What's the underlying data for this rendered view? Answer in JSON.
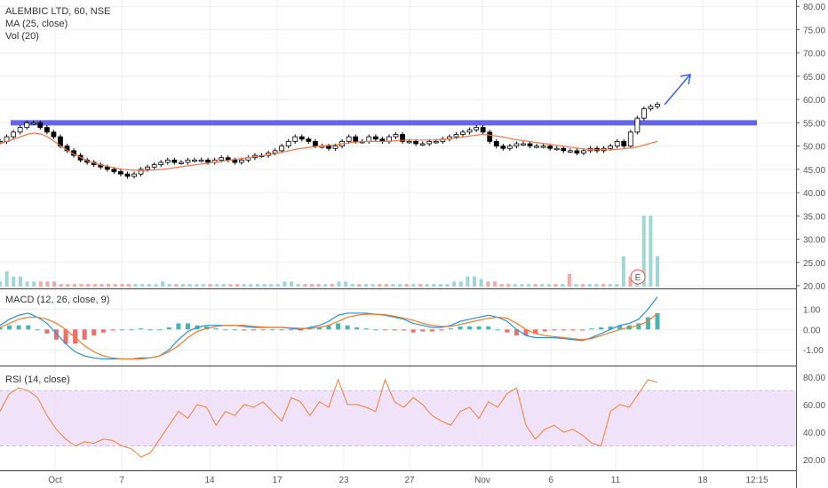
{
  "header": {
    "symbol_line": "ALEMBIC LTD, 60, NSE",
    "ma_label": "MA (25, close)",
    "vol_label": "Vol (20)"
  },
  "macd_label": "MACD (12, 26, close, 9)",
  "rsi_label": "RSI (14, close)",
  "earnings_marker": "E",
  "colors": {
    "up": "#000000",
    "ma": "#f0764a",
    "resistance": "#4a4ae8",
    "arrow": "#3a5fe0",
    "macd_line": "#2b8fd6",
    "signal_line": "#f07a2a",
    "hist_pos": "#2aa6a6",
    "hist_neg": "#ef5350",
    "rsi_line": "#f0884a",
    "rsi_band": "#ecdcf7"
  },
  "chart_data": [
    {
      "type": "candlestick",
      "title": "ALEMBIC LTD, 60, NSE",
      "x_ticks": [
        "Oct",
        "7",
        "14",
        "17",
        "23",
        "27",
        "Nov",
        "6",
        "11",
        "18",
        "12:15"
      ],
      "y_ticks": [
        "80.00",
        "75.00",
        "70.00",
        "65.00",
        "60.00",
        "55.00",
        "50.00",
        "45.00",
        "40.00",
        "35.00",
        "30.00",
        "25.00",
        "20.00"
      ],
      "ylim": [
        20,
        81
      ],
      "resistance_level": 55,
      "series": [
        {
          "name": "price",
          "values": [
            51,
            52,
            53,
            54,
            55,
            55,
            54,
            53,
            52,
            50,
            49,
            48,
            47,
            46.5,
            46,
            45.5,
            45,
            44.5,
            44,
            43.5,
            44,
            45,
            45.5,
            46,
            46.5,
            47,
            46.5,
            46.5,
            47,
            47,
            47,
            46.5,
            47,
            47.5,
            47,
            46.5,
            47,
            47.5,
            48,
            48,
            48.5,
            49,
            50,
            51,
            52,
            51.5,
            51,
            50,
            50,
            49.5,
            50,
            51,
            52,
            51,
            51,
            52,
            51.5,
            51,
            52,
            52.5,
            51,
            51,
            50.5,
            50.5,
            51,
            51,
            51.5,
            52,
            52.5,
            53,
            53.5,
            54,
            53,
            51,
            50,
            49.5,
            50,
            50.5,
            50.5,
            50,
            50,
            50,
            49.5,
            49.5,
            49,
            49,
            48.5,
            49,
            49.5,
            49,
            49.5,
            50,
            51,
            50,
            53,
            56,
            58,
            58.5,
            59
          ]
        },
        {
          "name": "MA (25, close)",
          "values": [
            50.5,
            51,
            51.5,
            52,
            52.5,
            52.8,
            52.6,
            52,
            51,
            50,
            49,
            48.2,
            47.5,
            46.8,
            46.3,
            45.9,
            45.6,
            45.3,
            45,
            44.9,
            44.8,
            44.7,
            44.8,
            44.9,
            45,
            45.2,
            45.4,
            45.6,
            45.8,
            46,
            46.2,
            46.4,
            46.6,
            46.8,
            47,
            47.2,
            47.4,
            47.6,
            47.8,
            48,
            48.2,
            48.5,
            48.8,
            49.1,
            49.4,
            49.6,
            49.8,
            50,
            50.1,
            50.2,
            50.4,
            50.6,
            50.8,
            50.9,
            51,
            51,
            51,
            51,
            51.1,
            51.2,
            51.3,
            51.3,
            51.3,
            51.3,
            51.3,
            51.4,
            51.5,
            51.7,
            51.9,
            52.1,
            52.3,
            52.5,
            52.4,
            52.2,
            52,
            51.7,
            51.4,
            51.2,
            51,
            50.8,
            50.6,
            50.4,
            50.2,
            50,
            49.8,
            49.6,
            49.4,
            49.3,
            49.2,
            49.2,
            49.2,
            49.3,
            49.4,
            49.6,
            49.8,
            50.2,
            50.6,
            51
          ]
        }
      ]
    },
    {
      "type": "bar",
      "title": "Vol (20)",
      "values": [
        1,
        3,
        2,
        2,
        1,
        1,
        1,
        1,
        1,
        0.5,
        0.5,
        0.5,
        0.5,
        0.5,
        0.5,
        0.5,
        0.5,
        0.5,
        0.5,
        0.5,
        0.5,
        0.5,
        0.5,
        0.5,
        1,
        0.5,
        0.5,
        0.5,
        0.5,
        0.5,
        0.5,
        0.5,
        0.5,
        0.5,
        0.5,
        0.5,
        0.5,
        0.5,
        0.5,
        0.5,
        0.5,
        0.5,
        1,
        1,
        0.5,
        0.5,
        0.5,
        0.5,
        0.5,
        0.5,
        1,
        1,
        0.5,
        0.5,
        0.5,
        0.5,
        0.5,
        0.5,
        0.5,
        0.5,
        0.5,
        0.5,
        0.5,
        0.5,
        0.5,
        0.5,
        0.5,
        1,
        1,
        2,
        2,
        1.5,
        1,
        1,
        0.5,
        0.5,
        0.5,
        0.5,
        0.5,
        0.5,
        0.5,
        0.5,
        0.5,
        0.5,
        2.5,
        0.5,
        0.5,
        0.5,
        0.5,
        0.5,
        0.5,
        0.5,
        6,
        2,
        3,
        14,
        14,
        6
      ]
    },
    {
      "type": "line",
      "title": "MACD (12, 26, close, 9)",
      "y_ticks": [
        "1.00",
        "0.00",
        "-1.00"
      ],
      "ylim": [
        -1.6,
        1.8
      ],
      "series": [
        {
          "name": "MACD",
          "values": [
            0.2,
            0.5,
            0.7,
            0.8,
            0.6,
            0.3,
            -0.2,
            -0.7,
            -1.1,
            -1.3,
            -1.4,
            -1.45,
            -1.45,
            -1.45,
            -1.45,
            -1.4,
            -1.4,
            -1.3,
            -1.0,
            -0.5,
            -0.1,
            0.1,
            0.2,
            0.2,
            0.2,
            0.2,
            0.15,
            0.1,
            0.1,
            0.1,
            0.1,
            0.05,
            0.0,
            0.1,
            0.2,
            0.4,
            0.7,
            0.8,
            0.8,
            0.8,
            0.75,
            0.7,
            0.6,
            0.5,
            0.3,
            0.2,
            0.1,
            0.1,
            0.2,
            0.4,
            0.5,
            0.6,
            0.7,
            0.6,
            0.4,
            0.0,
            -0.3,
            -0.4,
            -0.4,
            -0.4,
            -0.45,
            -0.5,
            -0.55,
            -0.4,
            -0.2,
            0.0,
            0.2,
            0.3,
            0.5,
            1.0,
            1.6
          ]
        },
        {
          "name": "Signal",
          "values": [
            0.1,
            0.3,
            0.5,
            0.6,
            0.6,
            0.5,
            0.3,
            0.0,
            -0.4,
            -0.8,
            -1.1,
            -1.3,
            -1.4,
            -1.45,
            -1.45,
            -1.45,
            -1.4,
            -1.3,
            -1.1,
            -0.8,
            -0.4,
            -0.1,
            0.05,
            0.15,
            0.2,
            0.2,
            0.2,
            0.15,
            0.12,
            0.1,
            0.1,
            0.08,
            0.05,
            0.05,
            0.1,
            0.2,
            0.4,
            0.6,
            0.7,
            0.75,
            0.75,
            0.72,
            0.65,
            0.55,
            0.45,
            0.3,
            0.2,
            0.15,
            0.15,
            0.25,
            0.35,
            0.45,
            0.55,
            0.6,
            0.55,
            0.3,
            0.0,
            -0.2,
            -0.3,
            -0.35,
            -0.4,
            -0.45,
            -0.5,
            -0.45,
            -0.3,
            -0.15,
            0.0,
            0.1,
            0.2,
            0.4,
            0.8
          ]
        },
        {
          "name": "Histogram",
          "values": [
            0.1,
            0.2,
            0.2,
            0.2,
            0.0,
            -0.2,
            -0.5,
            -0.7,
            -0.7,
            -0.5,
            -0.3,
            -0.15,
            -0.05,
            0.0,
            0.0,
            0.05,
            0.0,
            0.0,
            0.1,
            0.3,
            0.3,
            0.2,
            0.15,
            0.05,
            0.0,
            0.0,
            -0.05,
            -0.05,
            0.0,
            0.0,
            0.0,
            -0.03,
            -0.05,
            0.05,
            0.1,
            0.2,
            0.3,
            0.2,
            0.1,
            0.05,
            0.0,
            -0.02,
            -0.05,
            -0.05,
            -0.15,
            -0.1,
            -0.1,
            -0.05,
            0.05,
            0.15,
            0.15,
            0.15,
            0.15,
            0.0,
            -0.15,
            -0.3,
            -0.3,
            -0.2,
            -0.1,
            -0.05,
            -0.05,
            -0.05,
            -0.05,
            0.05,
            0.1,
            0.15,
            0.2,
            0.2,
            0.3,
            0.6,
            0.8
          ]
        }
      ]
    },
    {
      "type": "line",
      "title": "RSI (14, close)",
      "y_ticks": [
        "80.00",
        "60.00",
        "40.00",
        "20.00"
      ],
      "ylim": [
        15,
        85
      ],
      "band": [
        30,
        70
      ],
      "series": [
        {
          "name": "RSI",
          "values": [
            55,
            68,
            72,
            70,
            65,
            52,
            42,
            35,
            30,
            33,
            32,
            35,
            34,
            30,
            28,
            22,
            25,
            35,
            45,
            55,
            50,
            60,
            58,
            45,
            55,
            52,
            60,
            58,
            62,
            55,
            48,
            65,
            62,
            52,
            62,
            58,
            78,
            60,
            60,
            58,
            55,
            78,
            62,
            58,
            65,
            60,
            52,
            48,
            45,
            55,
            58,
            50,
            62,
            58,
            68,
            72,
            45,
            35,
            42,
            45,
            40,
            42,
            38,
            32,
            30,
            55,
            60,
            58,
            68,
            78,
            76
          ]
        }
      ]
    }
  ]
}
